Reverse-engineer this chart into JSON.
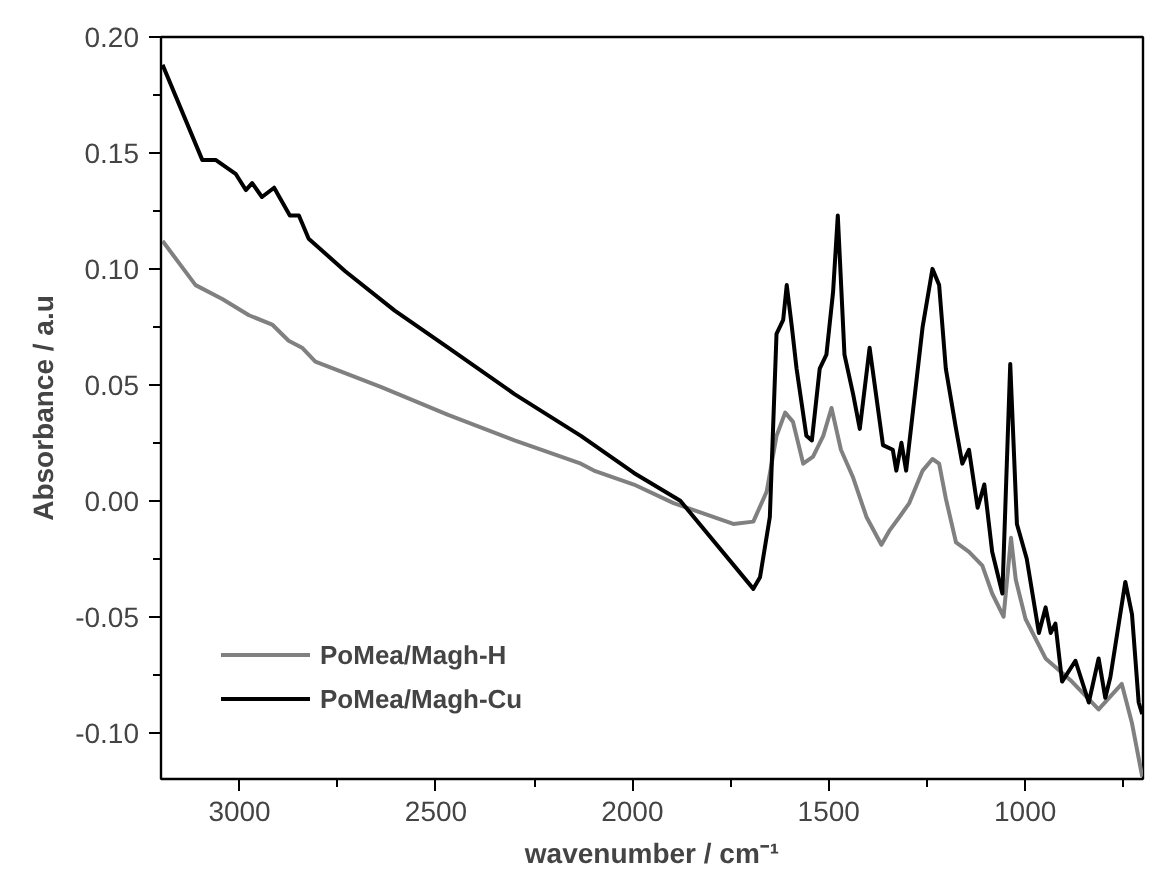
{
  "chart_data": {
    "type": "line",
    "xlabel": "wavenumber / cm⁻¹",
    "ylabel": "Absorbance / a.u",
    "xlim": [
      3200,
      700
    ],
    "ylim": [
      -0.12,
      0.2
    ],
    "xticks": [
      3000,
      {
        "value": 2750,
        "label": null
      },
      2500,
      {
        "value": 2250,
        "label": null
      },
      2000,
      {
        "value": 1750,
        "label": null
      },
      1500,
      {
        "value": 1250,
        "label": null
      },
      1000,
      {
        "value": 750,
        "label": null
      }
    ],
    "yticks": [
      {
        "value": -0.1,
        "label": "-0.10"
      },
      {
        "value": -0.075,
        "label": null
      },
      {
        "value": -0.05,
        "label": "-0.05"
      },
      {
        "value": -0.025,
        "label": null
      },
      {
        "value": 0,
        "label": "0.00"
      },
      {
        "value": 0.025,
        "label": null
      },
      {
        "value": 0.05,
        "label": "0.05"
      },
      {
        "value": 0.075,
        "label": null
      },
      {
        "value": 0.1,
        "label": "0.10"
      },
      {
        "value": 0.125,
        "label": null
      },
      {
        "value": 0.15,
        "label": "0.15"
      },
      {
        "value": 0.175,
        "label": null
      },
      {
        "value": 0.2,
        "label": "0.20"
      }
    ],
    "grid": false,
    "legend": "bottom left",
    "marker": "none",
    "line_style": "solid",
    "series": [
      {
        "name": "PoMea/Magh-H",
        "color": "#808080",
        "x": [
          3196,
          3112,
          3044,
          2976,
          2917,
          2875,
          2841,
          2807,
          2639,
          2469,
          2300,
          2131,
          2098,
          1996,
          1895,
          1743,
          1692,
          1658,
          1633,
          1611,
          1591,
          1565,
          1540,
          1514,
          1493,
          1469,
          1438,
          1404,
          1366,
          1346,
          1320,
          1295,
          1261,
          1236,
          1219,
          1202,
          1176,
          1143,
          1109,
          1084,
          1055,
          1036,
          1024,
          999,
          948,
          881,
          813,
          754,
          728,
          702
        ],
        "values": [
          0.112,
          0.093,
          0.087,
          0.08,
          0.076,
          0.069,
          0.066,
          0.06,
          0.049,
          0.037,
          0.026,
          0.016,
          0.013,
          0.007,
          -0.001,
          -0.01,
          -0.009,
          0.004,
          0.028,
          0.038,
          0.034,
          0.016,
          0.019,
          0.028,
          0.04,
          0.022,
          0.01,
          -0.007,
          -0.019,
          -0.013,
          -0.007,
          -0.001,
          0.013,
          0.018,
          0.016,
          0.001,
          -0.018,
          -0.022,
          -0.028,
          -0.04,
          -0.05,
          -0.016,
          -0.034,
          -0.051,
          -0.068,
          -0.078,
          -0.09,
          -0.079,
          -0.096,
          -0.119
        ]
      },
      {
        "name": "PoMea/Magh-Cu",
        "color": "#000000",
        "x": [
          3196,
          3095,
          3061,
          3010,
          2984,
          2968,
          2943,
          2912,
          2872,
          2849,
          2824,
          2731,
          2605,
          2469,
          2300,
          2131,
          1996,
          1878,
          1692,
          1675,
          1650,
          1633,
          1616,
          1607,
          1594,
          1582,
          1557,
          1543,
          1523,
          1506,
          1489,
          1477,
          1460,
          1438,
          1421,
          1396,
          1362,
          1337,
          1328,
          1315,
          1303,
          1261,
          1236,
          1219,
          1202,
          1176,
          1160,
          1143,
          1121,
          1104,
          1084,
          1058,
          1038,
          1021,
          996,
          965,
          948,
          935,
          923,
          906,
          872,
          838,
          813,
          796,
          783,
          745,
          728,
          711,
          702
        ],
        "values": [
          0.188,
          0.147,
          0.147,
          0.141,
          0.134,
          0.137,
          0.131,
          0.135,
          0.123,
          0.123,
          0.113,
          0.099,
          0.082,
          0.066,
          0.046,
          0.028,
          0.012,
          0.0,
          -0.038,
          -0.033,
          -0.007,
          0.072,
          0.078,
          0.093,
          0.075,
          0.057,
          0.028,
          0.026,
          0.057,
          0.063,
          0.09,
          0.123,
          0.063,
          0.046,
          0.031,
          0.066,
          0.024,
          0.022,
          0.013,
          0.025,
          0.013,
          0.075,
          0.1,
          0.093,
          0.057,
          0.031,
          0.016,
          0.022,
          -0.003,
          0.007,
          -0.022,
          -0.04,
          0.059,
          -0.01,
          -0.025,
          -0.057,
          -0.046,
          -0.057,
          -0.053,
          -0.078,
          -0.069,
          -0.087,
          -0.068,
          -0.085,
          -0.076,
          -0.035,
          -0.049,
          -0.087,
          -0.092
        ]
      }
    ]
  }
}
